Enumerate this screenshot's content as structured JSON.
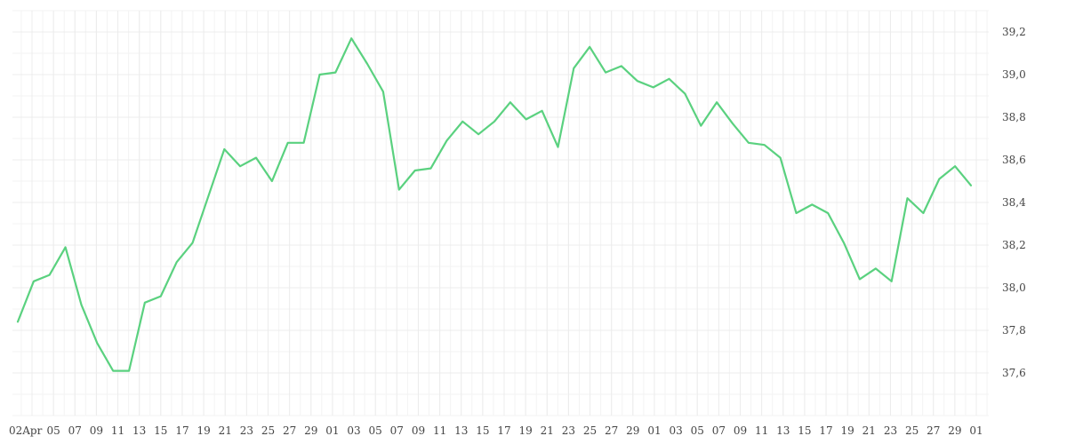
{
  "chart_data": {
    "type": "line",
    "title": "",
    "xlabel": "",
    "ylabel": "",
    "ylim": [
      37.4,
      39.3
    ],
    "y_ticks": [
      37.6,
      37.8,
      38.0,
      38.2,
      38.4,
      38.6,
      38.8,
      39.0,
      39.2
    ],
    "y_tick_labels": [
      "37,6",
      "37,8",
      "38,0",
      "38,2",
      "38,4",
      "38,6",
      "38,8",
      "39,0",
      "39,2"
    ],
    "x_tick_labels": [
      "02Apr",
      "05",
      "07",
      "09",
      "11",
      "13",
      "15",
      "17",
      "19",
      "21",
      "23",
      "25",
      "27",
      "29",
      "01",
      "03",
      "05",
      "07",
      "09",
      "11",
      "13",
      "15",
      "17",
      "19",
      "21",
      "23",
      "25",
      "27",
      "29",
      "01",
      "03",
      "05",
      "07",
      "09",
      "11",
      "13",
      "15",
      "17",
      "19",
      "21",
      "23",
      "25",
      "27",
      "29",
      "01"
    ],
    "grid": true,
    "series": [
      {
        "color": "#5ad17f",
        "values": [
          37.84,
          38.03,
          38.06,
          38.19,
          37.92,
          37.74,
          37.61,
          37.61,
          37.93,
          37.96,
          38.12,
          38.21,
          38.43,
          38.65,
          38.57,
          38.61,
          38.5,
          38.68,
          38.68,
          39.0,
          39.01,
          39.17,
          39.05,
          38.92,
          38.46,
          38.55,
          38.56,
          38.69,
          38.78,
          38.72,
          38.78,
          38.87,
          38.79,
          38.83,
          38.66,
          39.03,
          39.13,
          39.01,
          39.04,
          38.97,
          38.94,
          38.98,
          38.91,
          38.76,
          38.87,
          38.77,
          38.68,
          38.67,
          38.61,
          38.35,
          38.39,
          38.35,
          38.21,
          38.04,
          38.09,
          38.03,
          38.42,
          38.35,
          38.51,
          38.57,
          38.48
        ]
      }
    ]
  }
}
